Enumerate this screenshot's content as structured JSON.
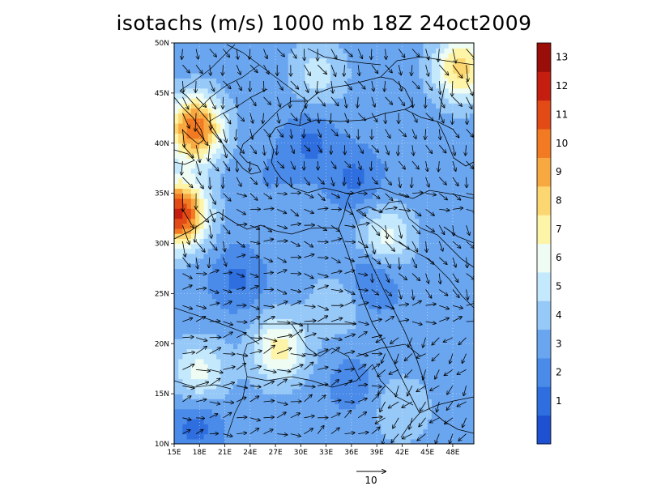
{
  "title": "isotachs (m/s) 1000 mb 18Z 24oct2009",
  "axes": {
    "lon_labels": [
      "15E",
      "18E",
      "21E",
      "24E",
      "27E",
      "30E",
      "33E",
      "36E",
      "39E",
      "42E",
      "45E",
      "48E"
    ],
    "lat_labels": [
      "10N",
      "15N",
      "20N",
      "25N",
      "30N",
      "35N",
      "40N",
      "45N",
      "50N"
    ]
  },
  "colorbar": {
    "labels": [
      "1",
      "2",
      "3",
      "4",
      "5",
      "6",
      "7",
      "8",
      "9",
      "10",
      "11",
      "12",
      "13"
    ],
    "colors": [
      "#1e50d2",
      "#2e6ede",
      "#4a8ae8",
      "#6aa6f0",
      "#96c8f8",
      "#c4e8fc",
      "#eefcf4",
      "#fdf4a8",
      "#fcd670",
      "#f8a840",
      "#f27a22",
      "#e24a16",
      "#c41e10",
      "#9a0e0a"
    ]
  },
  "reference_vector": {
    "label": "10"
  },
  "chart_data": {
    "type": "heatmap",
    "title": "isotachs (m/s) 1000 mb 18Z 24oct2009",
    "xlim": [
      15,
      50.5
    ],
    "ylim": [
      10,
      50
    ],
    "levels": [
      1,
      2,
      3,
      4,
      5,
      6,
      7,
      8,
      9,
      10,
      11,
      12,
      13
    ],
    "speed_centers": [
      {
        "lon": 15.5,
        "lat": 33.0,
        "speed": 12.5
      },
      {
        "lon": 17.5,
        "lat": 41.5,
        "speed": 11.0
      },
      {
        "lon": 49.0,
        "lat": 47.5,
        "speed": 8.5
      },
      {
        "lon": 27.5,
        "lat": 19.5,
        "speed": 7.5
      },
      {
        "lon": 40.0,
        "lat": 30.5,
        "speed": 6.5
      },
      {
        "lon": 18.0,
        "lat": 17.0,
        "speed": 6.5
      },
      {
        "lon": 32.0,
        "lat": 47.0,
        "speed": 5.5
      },
      {
        "lon": 34.5,
        "lat": 24.0,
        "speed": 5.0
      },
      {
        "lon": 42.0,
        "lat": 13.5,
        "speed": 5.0
      },
      {
        "lon": 36.5,
        "lat": 36.5,
        "speed": 1.8
      },
      {
        "lon": 31.0,
        "lat": 40.0,
        "speed": 1.8
      },
      {
        "lon": 22.5,
        "lat": 26.5,
        "speed": 1.8
      },
      {
        "lon": 38.5,
        "lat": 26.5,
        "speed": 1.5
      },
      {
        "lon": 17.5,
        "lat": 12.0,
        "speed": 1.5
      },
      {
        "lon": 36.0,
        "lat": 16.0,
        "speed": 2.5
      },
      {
        "lon": 26.0,
        "lat": 36.5,
        "speed": 3.0
      }
    ],
    "background_speed": 3.5
  }
}
